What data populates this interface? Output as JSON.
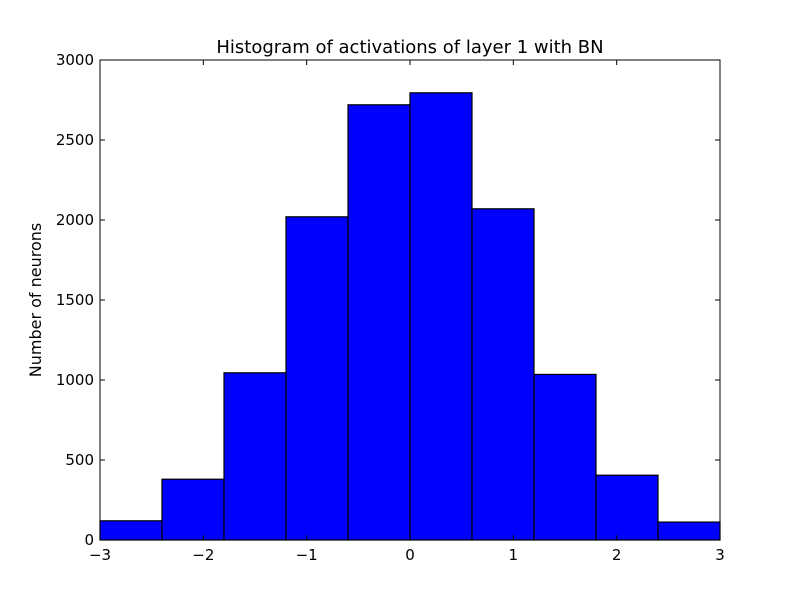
{
  "chart_data": {
    "type": "bar",
    "title": "Histogram of activations of layer 1  with BN",
    "xlabel": "",
    "ylabel": "Number of neurons",
    "xlim": [
      -3,
      3
    ],
    "ylim": [
      0,
      3000
    ],
    "grid": false,
    "bin_edges": [
      -3.0,
      -2.4,
      -1.8,
      -1.2,
      -0.6,
      0.0,
      0.6,
      1.2,
      1.8,
      2.4,
      3.0
    ],
    "values": [
      120,
      380,
      1045,
      2020,
      2720,
      2795,
      2070,
      1035,
      405,
      112
    ],
    "xticks": [
      -3,
      -2,
      -1,
      0,
      1,
      2,
      3
    ],
    "xtick_labels": [
      "−3",
      "−2",
      "−1",
      "0",
      "1",
      "2",
      "3"
    ],
    "yticks": [
      0,
      500,
      1000,
      1500,
      2000,
      2500,
      3000
    ],
    "ytick_labels": [
      "0",
      "500",
      "1000",
      "1500",
      "2000",
      "2500",
      "3000"
    ],
    "bar_color": "#0000ff",
    "edge_color": "#000000"
  }
}
